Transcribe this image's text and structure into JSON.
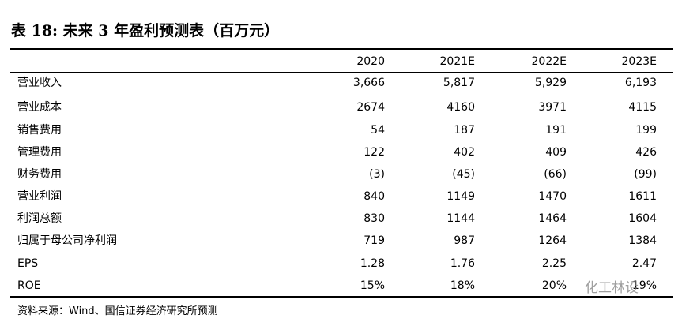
{
  "header": {
    "title": "表 18:  未来 3 年盈利预测表（百万元）"
  },
  "table": {
    "columns": [
      "2020",
      "2021E",
      "2022E",
      "2023E"
    ],
    "rows": [
      [
        "营业收入",
        "3,666",
        "5,817",
        "5,929",
        "6,193"
      ],
      [
        "营业成本",
        "2674",
        "4160",
        "3971",
        "4115"
      ],
      [
        "销售费用",
        "54",
        "187",
        "191",
        "199"
      ],
      [
        "管理费用",
        "122",
        "402",
        "409",
        "426"
      ],
      [
        "财务费用",
        "(3)",
        "(45)",
        "(66)",
        "(99)"
      ],
      [
        "营业利润",
        "840",
        "1149",
        "1470",
        "1611"
      ],
      [
        "利润总额",
        "830",
        "1144",
        "1464",
        "1604"
      ],
      [
        "归属于母公司净利润",
        "719",
        "987",
        "1264",
        "1384"
      ],
      [
        "EPS",
        "1.28",
        "1.76",
        "2.25",
        "2.47"
      ],
      [
        "ROE",
        "15%",
        "18%",
        "20%",
        "19%"
      ]
    ]
  },
  "footer": {
    "source": "资料来源：Wind、国信证券经济研究所预测",
    "watermark": "化工林设"
  }
}
